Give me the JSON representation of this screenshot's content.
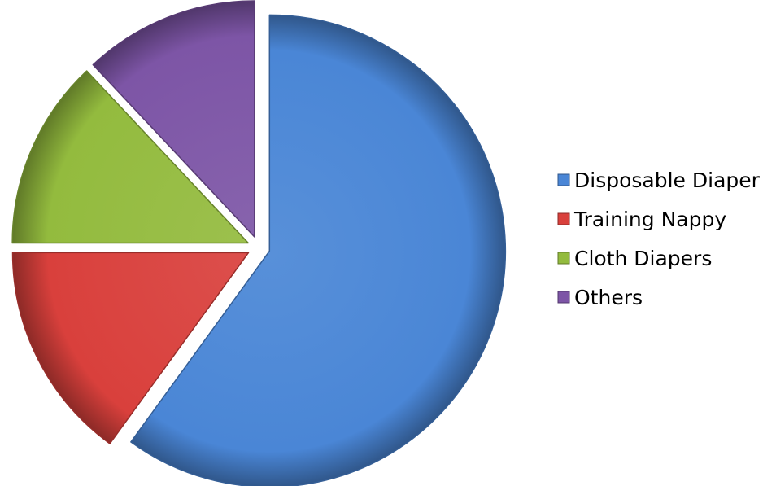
{
  "chart_data": {
    "type": "pie",
    "style": "3D exploded pie",
    "categories": [
      "Disposable Diaper",
      "Training Nappy",
      "Cloth Diapers",
      "Others"
    ],
    "values": [
      60,
      15,
      13,
      12
    ],
    "unit": "percent (estimated share of total)",
    "colors": [
      "#4a86d6",
      "#d9403c",
      "#93bb3e",
      "#7d55a6"
    ],
    "legend_position": "right"
  }
}
